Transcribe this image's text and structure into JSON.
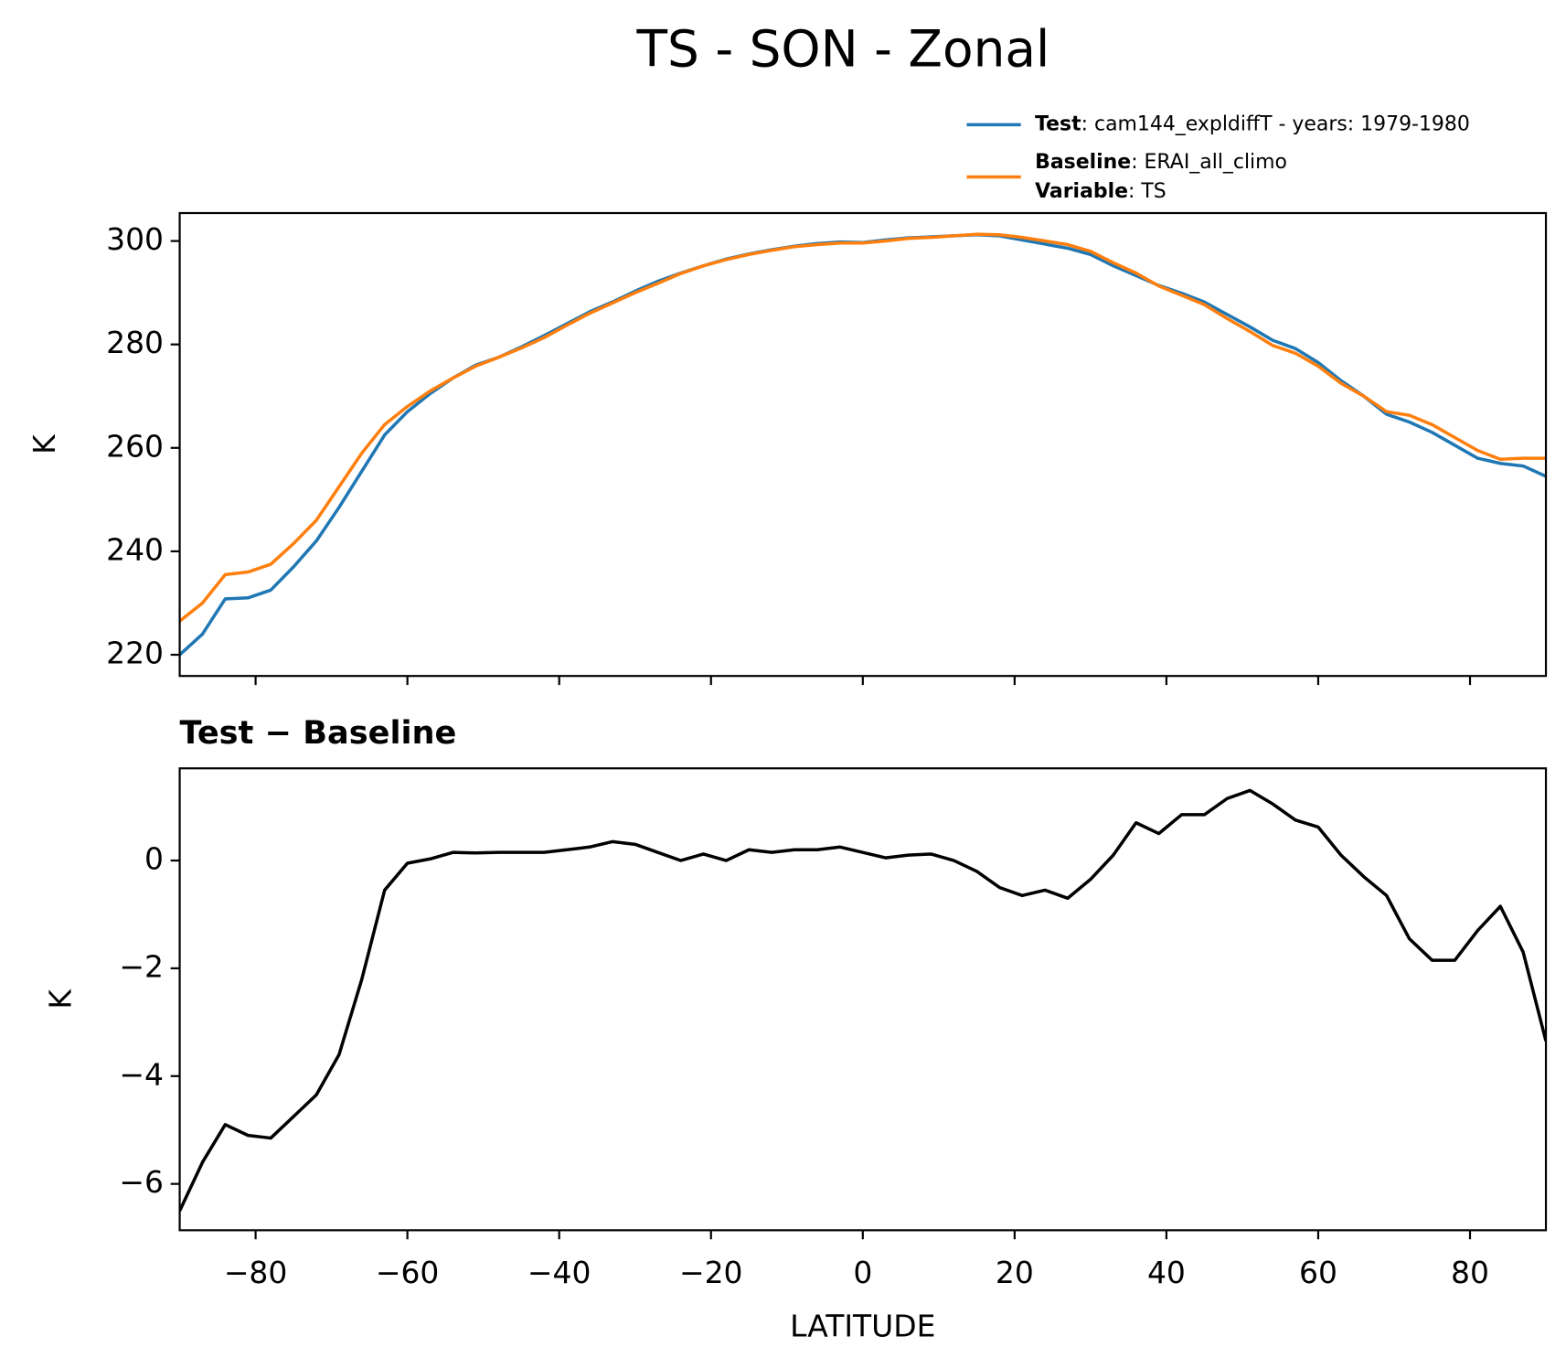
{
  "chart_data": [
    {
      "type": "line",
      "title": "TS - SON - Zonal",
      "y_label": "K",
      "x": [
        -90,
        -87,
        -84,
        -81,
        -78,
        -75,
        -72,
        -69,
        -66,
        -63,
        -60,
        -57,
        -54,
        -51,
        -48,
        -45,
        -42,
        -39,
        -36,
        -33,
        -30,
        -27,
        -24,
        -21,
        -18,
        -15,
        -12,
        -9,
        -6,
        -3,
        0,
        3,
        6,
        9,
        12,
        15,
        18,
        21,
        24,
        27,
        30,
        33,
        36,
        39,
        42,
        45,
        48,
        51,
        54,
        57,
        60,
        63,
        66,
        69,
        72,
        75,
        78,
        81,
        84,
        87,
        90
      ],
      "series": [
        {
          "name": "Test",
          "detail": ": cam144_expldiffT - years: 1979-1980",
          "color": "#1f77b4",
          "values": [
            220,
            224,
            230.8,
            231,
            232.5,
            237,
            242,
            248.5,
            255.5,
            262.5,
            267,
            270.5,
            273.5,
            276,
            277.5,
            279.5,
            281.7,
            284,
            286.3,
            288.2,
            290.3,
            292.2,
            293.8,
            295.2,
            296.5,
            297.5,
            298.3,
            299,
            299.5,
            299.8,
            299.7,
            300.2,
            300.6,
            300.8,
            301,
            301.2,
            301,
            300.2,
            299.4,
            298.6,
            297.4,
            295.2,
            293.3,
            291.4,
            289.9,
            288.2,
            285.8,
            283.4,
            280.8,
            279.2,
            276.5,
            273,
            270,
            266.5,
            265,
            263,
            260.5,
            258,
            257,
            256.5,
            254.5
          ]
        },
        {
          "name": "Baseline",
          "detail": ": ERAI_all_climo",
          "color": "#ff7f0e",
          "values": [
            226.5,
            230,
            235.5,
            236,
            237.5,
            241.5,
            246,
            252.5,
            259,
            264.5,
            268,
            271,
            273.5,
            275.8,
            277.5,
            279.3,
            281.3,
            283.7,
            286,
            288,
            290,
            291.8,
            293.7,
            295.2,
            296.4,
            297.4,
            298.2,
            298.9,
            299.3,
            299.6,
            299.6,
            300,
            300.5,
            300.7,
            301,
            301.3,
            301.2,
            300.7,
            300,
            299.3,
            298,
            295.8,
            293.8,
            291.3,
            289.5,
            287.7,
            285,
            282.5,
            279.8,
            278.3,
            275.8,
            272.5,
            270,
            267,
            266.3,
            264.5,
            262,
            259.5,
            257.8,
            258,
            258
          ]
        }
      ],
      "variable_name": "Variable",
      "variable_detail": ": TS",
      "xlim": [
        -90,
        90
      ],
      "xticks": [
        -80,
        -60,
        -40,
        -20,
        0,
        20,
        40,
        60,
        80
      ],
      "ylim": [
        215.9,
        305.4
      ],
      "yticks": [
        220,
        240,
        260,
        280,
        300
      ]
    },
    {
      "type": "line",
      "title": "Test − Baseline",
      "y_label": "K",
      "x_label": "LATITUDE",
      "x": [
        -90,
        -87,
        -84,
        -81,
        -78,
        -75,
        -72,
        -69,
        -66,
        -63,
        -60,
        -57,
        -54,
        -51,
        -48,
        -45,
        -42,
        -39,
        -36,
        -33,
        -30,
        -27,
        -24,
        -21,
        -18,
        -15,
        -12,
        -9,
        -6,
        -3,
        0,
        3,
        6,
        9,
        12,
        15,
        18,
        21,
        24,
        27,
        30,
        33,
        36,
        39,
        42,
        45,
        48,
        51,
        54,
        57,
        60,
        63,
        66,
        69,
        72,
        75,
        78,
        81,
        84,
        87,
        90
      ],
      "series": [
        {
          "color": "#000000",
          "values": [
            -6.5,
            -5.6,
            -4.9,
            -5.1,
            -5.15,
            -4.75,
            -4.35,
            -3.6,
            -2.2,
            -0.55,
            -0.05,
            0.03,
            0.15,
            0.14,
            0.15,
            0.15,
            0.15,
            0.2,
            0.25,
            0.35,
            0.3,
            0.15,
            0,
            0.12,
            0,
            0.2,
            0.15,
            0.2,
            0.2,
            0.25,
            0.15,
            0.05,
            0.1,
            0.12,
            0,
            -0.2,
            -0.5,
            -0.65,
            -0.55,
            -0.7,
            -0.35,
            0.1,
            0.7,
            0.5,
            0.85,
            0.85,
            1.15,
            1.3,
            1.05,
            0.75,
            0.62,
            0.1,
            -0.3,
            -0.65,
            -1.45,
            -1.85,
            -1.85,
            -1.3,
            -0.85,
            -1.7,
            -3.35
          ]
        }
      ],
      "xlim": [
        -90,
        90
      ],
      "xticks": [
        {
          "value": -80,
          "label": "−80"
        },
        {
          "value": -60,
          "label": "−60"
        },
        {
          "value": -40,
          "label": "−40"
        },
        {
          "value": -20,
          "label": "−20"
        },
        0,
        20,
        40,
        60,
        80
      ],
      "ylim": [
        -6.86,
        1.71
      ],
      "yticks": [
        {
          "value": -6,
          "label": "−6"
        },
        {
          "value": -4,
          "label": "−4"
        },
        {
          "value": -2,
          "label": "−2"
        },
        0
      ]
    }
  ]
}
